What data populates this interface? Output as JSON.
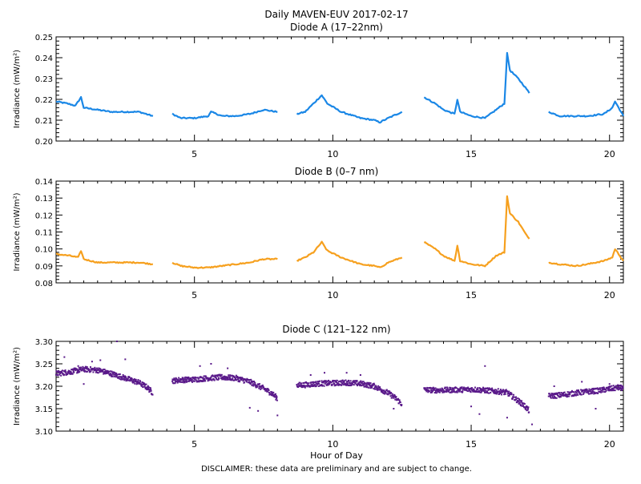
{
  "figure": {
    "title": "Daily MAVEN-EUV 2017-02-17",
    "disclaimer": "DISCLAIMER: these data are preliminary and are subject to change.",
    "xlabel": "Hour of Day"
  },
  "colors": {
    "diode_a": "#1a87e6",
    "diode_b": "#f6a01e",
    "diode_c": "#5a1a8a"
  },
  "chart_data": [
    {
      "type": "line",
      "title": "Diode A (17–22nm)",
      "ylabel": "Irradiance (mW/m²)",
      "ylim": [
        0.2,
        0.25
      ],
      "yticks": [
        "0.20",
        "0.21",
        "0.22",
        "0.23",
        "0.24",
        "0.25"
      ],
      "xlim": [
        0,
        20.5
      ],
      "xticks": [
        "5",
        "10",
        "15",
        "20"
      ],
      "color_key": "diode_a",
      "segments": [
        [
          [
            0.0,
            0.219
          ],
          [
            0.4,
            0.218
          ],
          [
            0.7,
            0.217
          ],
          [
            0.9,
            0.221
          ],
          [
            1.0,
            0.216
          ],
          [
            1.5,
            0.215
          ],
          [
            2.0,
            0.214
          ],
          [
            2.5,
            0.214
          ],
          [
            3.0,
            0.214
          ],
          [
            3.5,
            0.212
          ]
        ],
        [
          [
            4.2,
            0.213
          ],
          [
            4.5,
            0.211
          ],
          [
            5.0,
            0.211
          ],
          [
            5.5,
            0.212
          ],
          [
            5.6,
            0.214
          ],
          [
            6.0,
            0.212
          ],
          [
            6.5,
            0.212
          ],
          [
            7.0,
            0.213
          ],
          [
            7.5,
            0.215
          ],
          [
            8.0,
            0.214
          ]
        ],
        [
          [
            8.7,
            0.213
          ],
          [
            9.0,
            0.214
          ],
          [
            9.3,
            0.218
          ],
          [
            9.6,
            0.222
          ],
          [
            9.8,
            0.218
          ],
          [
            10.3,
            0.214
          ],
          [
            11.0,
            0.211
          ],
          [
            11.5,
            0.21
          ],
          [
            11.7,
            0.209
          ],
          [
            12.0,
            0.211
          ],
          [
            12.5,
            0.214
          ]
        ],
        [
          [
            13.3,
            0.221
          ],
          [
            13.7,
            0.218
          ],
          [
            14.0,
            0.215
          ],
          [
            14.4,
            0.213
          ],
          [
            14.5,
            0.22
          ],
          [
            14.6,
            0.214
          ],
          [
            15.0,
            0.212
          ],
          [
            15.5,
            0.211
          ],
          [
            15.9,
            0.215
          ],
          [
            16.2,
            0.218
          ],
          [
            16.3,
            0.242
          ],
          [
            16.4,
            0.234
          ],
          [
            16.7,
            0.23
          ],
          [
            17.0,
            0.225
          ],
          [
            17.1,
            0.223
          ]
        ],
        [
          [
            17.8,
            0.214
          ],
          [
            18.2,
            0.212
          ],
          [
            18.8,
            0.212
          ],
          [
            19.2,
            0.212
          ],
          [
            19.8,
            0.213
          ],
          [
            20.1,
            0.216
          ],
          [
            20.2,
            0.219
          ],
          [
            20.5,
            0.212
          ]
        ]
      ]
    },
    {
      "type": "line",
      "title": "Diode B (0–7 nm)",
      "ylabel": "Irradiance (mW/m²)",
      "ylim": [
        0.08,
        0.14
      ],
      "yticks": [
        "0.08",
        "0.09",
        "0.10",
        "0.11",
        "0.12",
        "0.13",
        "0.14"
      ],
      "xlim": [
        0,
        20.5
      ],
      "xticks": [
        "5",
        "10",
        "15",
        "20"
      ],
      "color_key": "diode_b",
      "segments": [
        [
          [
            0.0,
            0.097
          ],
          [
            0.5,
            0.096
          ],
          [
            0.8,
            0.095
          ],
          [
            0.9,
            0.099
          ],
          [
            1.0,
            0.094
          ],
          [
            1.5,
            0.092
          ],
          [
            2.0,
            0.092
          ],
          [
            2.5,
            0.092
          ],
          [
            3.0,
            0.092
          ],
          [
            3.5,
            0.091
          ]
        ],
        [
          [
            4.2,
            0.092
          ],
          [
            4.5,
            0.09
          ],
          [
            5.0,
            0.089
          ],
          [
            5.5,
            0.089
          ],
          [
            6.0,
            0.09
          ],
          [
            6.5,
            0.091
          ],
          [
            7.0,
            0.092
          ],
          [
            7.5,
            0.094
          ],
          [
            8.0,
            0.094
          ]
        ],
        [
          [
            8.7,
            0.093
          ],
          [
            9.0,
            0.095
          ],
          [
            9.3,
            0.098
          ],
          [
            9.6,
            0.104
          ],
          [
            9.8,
            0.099
          ],
          [
            10.3,
            0.095
          ],
          [
            11.0,
            0.091
          ],
          [
            11.5,
            0.09
          ],
          [
            11.7,
            0.089
          ],
          [
            12.0,
            0.092
          ],
          [
            12.5,
            0.095
          ]
        ],
        [
          [
            13.3,
            0.104
          ],
          [
            13.7,
            0.1
          ],
          [
            14.0,
            0.096
          ],
          [
            14.4,
            0.093
          ],
          [
            14.5,
            0.102
          ],
          [
            14.6,
            0.093
          ],
          [
            15.0,
            0.091
          ],
          [
            15.5,
            0.09
          ],
          [
            15.9,
            0.096
          ],
          [
            16.2,
            0.098
          ],
          [
            16.3,
            0.131
          ],
          [
            16.4,
            0.121
          ],
          [
            16.7,
            0.116
          ],
          [
            17.0,
            0.108
          ],
          [
            17.1,
            0.106
          ]
        ],
        [
          [
            17.8,
            0.092
          ],
          [
            18.2,
            0.091
          ],
          [
            18.8,
            0.09
          ],
          [
            19.2,
            0.091
          ],
          [
            19.8,
            0.093
          ],
          [
            20.1,
            0.095
          ],
          [
            20.2,
            0.1
          ],
          [
            20.5,
            0.093
          ]
        ]
      ]
    },
    {
      "type": "scatter",
      "title": "Diode C (121–122 nm)",
      "ylabel": "Irradiance (mW/m²)",
      "ylim": [
        3.1,
        3.3
      ],
      "yticks": [
        "3.10",
        "3.15",
        "3.20",
        "3.25",
        "3.30"
      ],
      "xlim": [
        0,
        20.5
      ],
      "xticks": [
        "5",
        "10",
        "15",
        "20"
      ],
      "color_key": "diode_c",
      "segments": [
        [
          [
            0.0,
            3.228
          ],
          [
            0.5,
            3.232
          ],
          [
            1.0,
            3.238
          ],
          [
            1.5,
            3.236
          ],
          [
            2.0,
            3.228
          ],
          [
            2.5,
            3.218
          ],
          [
            3.0,
            3.208
          ],
          [
            3.3,
            3.197
          ],
          [
            3.5,
            3.185
          ]
        ],
        [
          [
            4.2,
            3.212
          ],
          [
            4.5,
            3.214
          ],
          [
            5.0,
            3.215
          ],
          [
            5.5,
            3.218
          ],
          [
            6.0,
            3.22
          ],
          [
            6.5,
            3.218
          ],
          [
            7.0,
            3.21
          ],
          [
            7.5,
            3.195
          ],
          [
            7.8,
            3.184
          ],
          [
            8.0,
            3.173
          ]
        ],
        [
          [
            8.7,
            3.202
          ],
          [
            9.0,
            3.203
          ],
          [
            9.5,
            3.206
          ],
          [
            10.0,
            3.207
          ],
          [
            10.5,
            3.208
          ],
          [
            11.0,
            3.206
          ],
          [
            11.5,
            3.2
          ],
          [
            12.0,
            3.185
          ],
          [
            12.3,
            3.172
          ],
          [
            12.5,
            3.16
          ]
        ],
        [
          [
            13.3,
            3.192
          ],
          [
            13.8,
            3.191
          ],
          [
            14.5,
            3.192
          ],
          [
            15.0,
            3.193
          ],
          [
            15.5,
            3.191
          ],
          [
            16.0,
            3.188
          ],
          [
            16.3,
            3.186
          ],
          [
            16.6,
            3.172
          ],
          [
            16.9,
            3.158
          ],
          [
            17.1,
            3.145
          ]
        ],
        [
          [
            17.8,
            3.178
          ],
          [
            18.2,
            3.18
          ],
          [
            18.8,
            3.185
          ],
          [
            19.2,
            3.188
          ],
          [
            19.6,
            3.19
          ],
          [
            20.0,
            3.194
          ],
          [
            20.3,
            3.197
          ],
          [
            20.5,
            3.196
          ]
        ]
      ],
      "outliers": [
        [
          0.3,
          3.265
        ],
        [
          0.8,
          3.245
        ],
        [
          1.3,
          3.255
        ],
        [
          1.6,
          3.258
        ],
        [
          2.2,
          3.3
        ],
        [
          2.5,
          3.26
        ],
        [
          1.0,
          3.205
        ],
        [
          5.2,
          3.245
        ],
        [
          5.6,
          3.25
        ],
        [
          6.2,
          3.24
        ],
        [
          6.8,
          3.215
        ],
        [
          7.0,
          3.152
        ],
        [
          7.3,
          3.145
        ],
        [
          8.0,
          3.135
        ],
        [
          9.2,
          3.225
        ],
        [
          9.7,
          3.23
        ],
        [
          10.5,
          3.23
        ],
        [
          11.0,
          3.225
        ],
        [
          12.2,
          3.15
        ],
        [
          15.5,
          3.245
        ],
        [
          15.0,
          3.155
        ],
        [
          15.3,
          3.138
        ],
        [
          16.3,
          3.13
        ],
        [
          17.2,
          3.115
        ],
        [
          18.0,
          3.2
        ],
        [
          19.5,
          3.15
        ],
        [
          19.0,
          3.21
        ],
        [
          20.0,
          3.205
        ]
      ]
    }
  ]
}
